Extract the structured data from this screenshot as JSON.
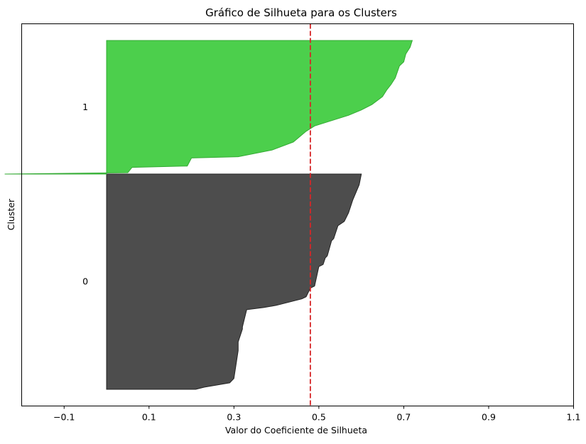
{
  "chart_data": {
    "type": "silhouette",
    "title": "Gráfico de Silhueta para os Clusters",
    "xlabel": "Valor do Coeficiente de Silhueta",
    "ylabel": "Cluster",
    "xlim": [
      -0.2,
      1.1
    ],
    "xticks": [
      "-0.1",
      "0.1",
      "0.3",
      "0.5",
      "0.7",
      "0.9",
      "1.1"
    ],
    "xtick_values": [
      -0.1,
      0.1,
      0.3,
      0.5,
      0.7,
      0.9,
      1.1
    ],
    "average_silhouette": 0.48,
    "average_line_color": "#d62728",
    "grid": false,
    "clusters": [
      {
        "label": "0",
        "color": "#4d4d4d",
        "edge_color": "#222222",
        "profile": [
          [
            0.0,
            0.6
          ],
          [
            0.05,
            0.595
          ],
          [
            0.12,
            0.58
          ],
          [
            0.18,
            0.57
          ],
          [
            0.22,
            0.56
          ],
          [
            0.24,
            0.545
          ],
          [
            0.3,
            0.535
          ],
          [
            0.31,
            0.53
          ],
          [
            0.38,
            0.52
          ],
          [
            0.39,
            0.515
          ],
          [
            0.42,
            0.51
          ],
          [
            0.43,
            0.5
          ],
          [
            0.52,
            0.49
          ],
          [
            0.53,
            0.48
          ],
          [
            0.57,
            0.47
          ],
          [
            0.58,
            0.46
          ],
          [
            0.61,
            0.4
          ],
          [
            0.62,
            0.37
          ],
          [
            0.63,
            0.33
          ],
          [
            0.71,
            0.32
          ],
          [
            0.72,
            0.32
          ],
          [
            0.78,
            0.31
          ],
          [
            0.82,
            0.31
          ],
          [
            0.95,
            0.3
          ],
          [
            0.97,
            0.29
          ],
          [
            0.99,
            0.23
          ],
          [
            1.0,
            0.21
          ]
        ]
      },
      {
        "label": "1",
        "color": "#4ccf4c",
        "edge_color": "#33aa33",
        "profile": [
          [
            0.0,
            0.72
          ],
          [
            0.05,
            0.715
          ],
          [
            0.1,
            0.705
          ],
          [
            0.16,
            0.7
          ],
          [
            0.19,
            0.69
          ],
          [
            0.28,
            0.68
          ],
          [
            0.33,
            0.67
          ],
          [
            0.37,
            0.66
          ],
          [
            0.42,
            0.65
          ],
          [
            0.48,
            0.625
          ],
          [
            0.52,
            0.6
          ],
          [
            0.56,
            0.57
          ],
          [
            0.61,
            0.52
          ],
          [
            0.64,
            0.49
          ],
          [
            0.68,
            0.47
          ],
          [
            0.76,
            0.44
          ],
          [
            0.82,
            0.39
          ],
          [
            0.87,
            0.31
          ],
          [
            0.88,
            0.2
          ],
          [
            0.94,
            0.19
          ],
          [
            0.95,
            0.06
          ],
          [
            0.99,
            0.05
          ],
          [
            1.0,
            -0.24
          ]
        ]
      }
    ]
  }
}
